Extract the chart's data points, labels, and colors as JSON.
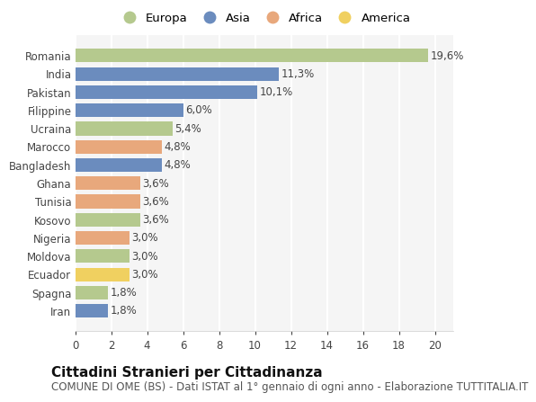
{
  "categories": [
    "Romania",
    "India",
    "Pakistan",
    "Filippine",
    "Ucraina",
    "Marocco",
    "Bangladesh",
    "Ghana",
    "Tunisia",
    "Kosovo",
    "Nigeria",
    "Moldova",
    "Ecuador",
    "Spagna",
    "Iran"
  ],
  "values": [
    19.6,
    11.3,
    10.1,
    6.0,
    5.4,
    4.8,
    4.8,
    3.6,
    3.6,
    3.6,
    3.0,
    3.0,
    3.0,
    1.8,
    1.8
  ],
  "labels": [
    "19,6%",
    "11,3%",
    "10,1%",
    "6,0%",
    "5,4%",
    "4,8%",
    "4,8%",
    "3,6%",
    "3,6%",
    "3,6%",
    "3,0%",
    "3,0%",
    "3,0%",
    "1,8%",
    "1,8%"
  ],
  "colors": [
    "#b5c98e",
    "#6b8cbe",
    "#6b8cbe",
    "#6b8cbe",
    "#b5c98e",
    "#e8a87c",
    "#6b8cbe",
    "#e8a87c",
    "#e8a87c",
    "#b5c98e",
    "#e8a87c",
    "#b5c98e",
    "#f0d060",
    "#b5c98e",
    "#6b8cbe"
  ],
  "legend_labels": [
    "Europa",
    "Asia",
    "Africa",
    "America"
  ],
  "legend_colors": [
    "#b5c98e",
    "#6b8cbe",
    "#e8a87c",
    "#f0d060"
  ],
  "xlim": [
    0,
    21
  ],
  "xticks": [
    0,
    2,
    4,
    6,
    8,
    10,
    12,
    14,
    16,
    18,
    20
  ],
  "title": "Cittadini Stranieri per Cittadinanza",
  "subtitle": "COMUNE DI OME (BS) - Dati ISTAT al 1° gennaio di ogni anno - Elaborazione TUTTITALIA.IT",
  "background_color": "#ffffff",
  "plot_bg_color": "#f5f5f5",
  "bar_height": 0.75,
  "label_fontsize": 8.5,
  "title_fontsize": 11,
  "subtitle_fontsize": 8.5,
  "grid_color": "#ffffff",
  "tick_fontsize": 8.5
}
